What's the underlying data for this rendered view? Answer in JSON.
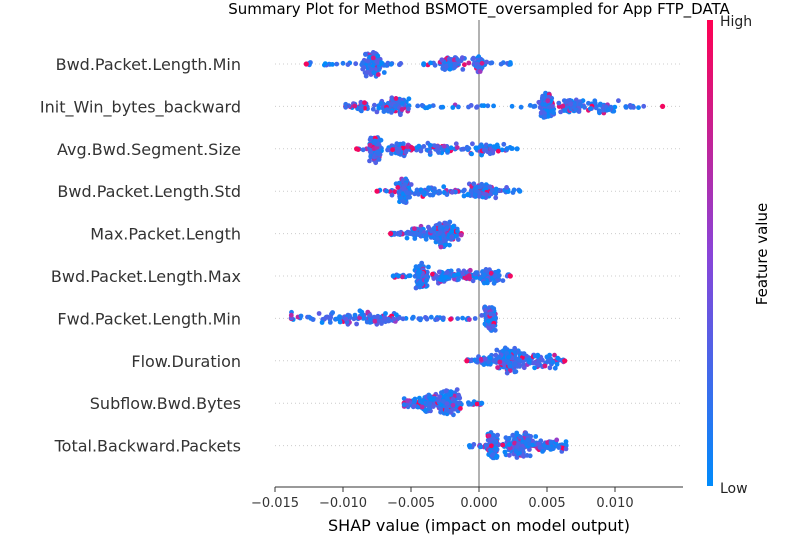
{
  "chart_data": {
    "type": "scatter",
    "subtype": "shap-beeswarm",
    "title": "Summary Plot for Method BSMOTE_oversampled for App FTP_DATA",
    "xlabel": "SHAP value (impact on model output)",
    "xlim": [
      -0.015,
      0.015
    ],
    "xticks": [
      -0.015,
      -0.01,
      -0.005,
      0.0,
      0.005,
      0.01
    ],
    "xtick_labels": [
      "−0.015",
      "−0.010",
      "−0.005",
      "0.000",
      "0.005",
      "0.010"
    ],
    "colorbar": {
      "label": "Feature value",
      "high_label": "High",
      "low_label": "Low",
      "low_color": "#008bfb",
      "high_color": "#ff0052"
    },
    "features": [
      {
        "name": "Bwd.Packet.Length.Min",
        "range": [
          -0.0127,
          0.0023
        ],
        "clusters": [
          [
            -0.0078,
            0.00035,
            1.0
          ],
          [
            -0.002,
            0.0004,
            0.5
          ],
          [
            0.0,
            0.0002,
            0.4
          ]
        ]
      },
      {
        "name": "Init_Win_bytes_backward",
        "range": [
          -0.0098,
          0.0135
        ],
        "clusters": [
          [
            -0.0062,
            0.0005,
            0.5
          ],
          [
            -0.0086,
            0.0008,
            0.2
          ],
          [
            0.005,
            0.0002,
            1.0
          ],
          [
            0.0068,
            0.0005,
            0.5
          ],
          [
            0.0085,
            0.001,
            0.3
          ]
        ]
      },
      {
        "name": "Avg.Bwd.Segment.Size",
        "range": [
          -0.009,
          0.0028
        ],
        "clusters": [
          [
            -0.0076,
            0.0002,
            1.0
          ],
          [
            -0.0058,
            0.0003,
            0.4
          ],
          [
            -0.003,
            0.001,
            0.3
          ],
          [
            0.0005,
            0.0008,
            0.3
          ]
        ]
      },
      {
        "name": "Bwd.Packet.Length.Std",
        "range": [
          -0.0075,
          0.003
        ],
        "clusters": [
          [
            -0.0055,
            0.0002,
            1.0
          ],
          [
            -0.004,
            0.0008,
            0.3
          ],
          [
            0.0003,
            0.0006,
            0.5
          ]
        ]
      },
      {
        "name": "Max.Packet.Length",
        "range": [
          -0.0065,
          -0.0013
        ],
        "clusters": [
          [
            -0.0027,
            0.0003,
            1.0
          ],
          [
            -0.004,
            0.0006,
            0.4
          ],
          [
            -0.002,
            0.0003,
            0.4
          ]
        ]
      },
      {
        "name": "Bwd.Packet.Length.Max",
        "range": [
          -0.0063,
          0.0023
        ],
        "clusters": [
          [
            -0.0042,
            0.0002,
            1.0
          ],
          [
            -0.0025,
            0.0006,
            0.4
          ],
          [
            -0.0005,
            0.001,
            0.3
          ],
          [
            0.0008,
            0.0004,
            0.4
          ]
        ]
      },
      {
        "name": "Fwd.Packet.Length.Min",
        "range": [
          -0.0138,
          0.0012
        ],
        "clusters": [
          [
            0.0008,
            0.0002,
            1.0
          ],
          [
            -0.0095,
            0.002,
            0.4
          ],
          [
            -0.007,
            0.0006,
            0.3
          ]
        ]
      },
      {
        "name": "Flow.Duration",
        "range": [
          -0.0009,
          0.0063
        ],
        "clusters": [
          [
            0.0022,
            0.0004,
            1.0
          ],
          [
            0.004,
            0.001,
            0.5
          ],
          [
            0.0008,
            0.0005,
            0.2
          ]
        ]
      },
      {
        "name": "Subflow.Bwd.Bytes",
        "range": [
          -0.0055,
          0.0002
        ],
        "clusters": [
          [
            -0.0022,
            0.0004,
            1.0
          ],
          [
            -0.0037,
            0.0005,
            0.6
          ],
          [
            -0.005,
            0.0004,
            0.2
          ]
        ]
      },
      {
        "name": "Total.Backward.Packets",
        "range": [
          -0.0007,
          0.0064
        ],
        "clusters": [
          [
            0.001,
            0.0002,
            1.0
          ],
          [
            0.003,
            0.0005,
            1.0
          ],
          [
            0.005,
            0.0008,
            0.4
          ]
        ]
      }
    ]
  }
}
